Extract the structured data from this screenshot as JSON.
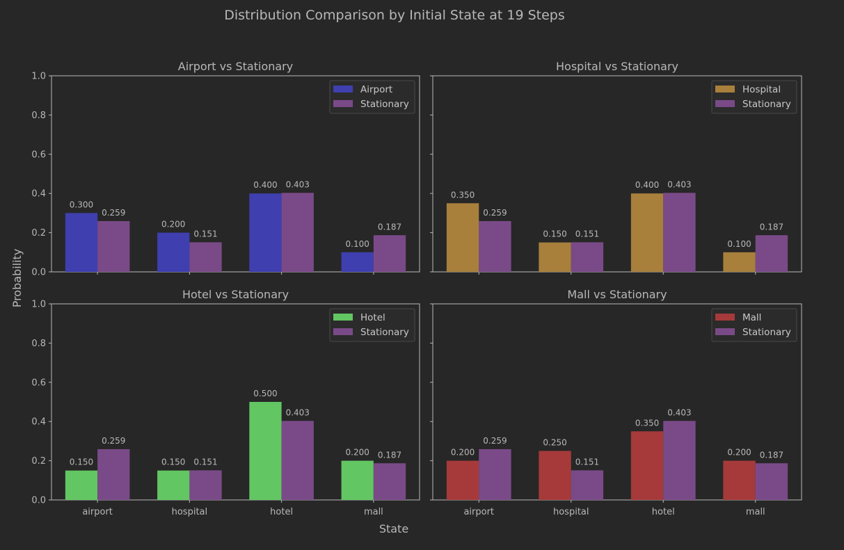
{
  "title": "Distribution Comparison by Initial State at 19 Steps",
  "xlabel": "State",
  "ylabel": "Probability",
  "colors": {
    "background": "#272727",
    "axis": "#b8b8b8",
    "stationary": "#7a4a88"
  },
  "chart_data": [
    {
      "type": "bar",
      "title": "Airport vs Stationary",
      "categories": [
        "airport",
        "hospital",
        "hotel",
        "mall"
      ],
      "ylim": [
        0,
        1.0
      ],
      "yticks": [
        "0.0",
        "0.2",
        "0.4",
        "0.6",
        "0.8",
        "1.0"
      ],
      "series": [
        {
          "name": "Airport",
          "color": "#3f3fb0",
          "values": [
            0.3,
            0.2,
            0.4,
            0.1
          ],
          "labels": [
            "0.300",
            "0.200",
            "0.400",
            "0.100"
          ]
        },
        {
          "name": "Stationary",
          "color": "#7a4a88",
          "values": [
            0.259,
            0.151,
            0.403,
            0.187
          ],
          "labels": [
            "0.259",
            "0.151",
            "0.403",
            "0.187"
          ]
        }
      ],
      "legend": "top-right"
    },
    {
      "type": "bar",
      "title": "Hospital vs Stationary",
      "categories": [
        "airport",
        "hospital",
        "hotel",
        "mall"
      ],
      "ylim": [
        0,
        1.0
      ],
      "yticks": [
        "0.0",
        "0.2",
        "0.4",
        "0.6",
        "0.8",
        "1.0"
      ],
      "series": [
        {
          "name": "Hospital",
          "color": "#a8803c",
          "values": [
            0.35,
            0.15,
            0.4,
            0.1
          ],
          "labels": [
            "0.350",
            "0.150",
            "0.400",
            "0.100"
          ]
        },
        {
          "name": "Stationary",
          "color": "#7a4a88",
          "values": [
            0.259,
            0.151,
            0.403,
            0.187
          ],
          "labels": [
            "0.259",
            "0.151",
            "0.403",
            "0.187"
          ]
        }
      ],
      "legend": "top-right"
    },
    {
      "type": "bar",
      "title": "Hotel vs Stationary",
      "categories": [
        "airport",
        "hospital",
        "hotel",
        "mall"
      ],
      "ylim": [
        0,
        1.0
      ],
      "yticks": [
        "0.0",
        "0.2",
        "0.4",
        "0.6",
        "0.8",
        "1.0"
      ],
      "series": [
        {
          "name": "Hotel",
          "color": "#62c662",
          "values": [
            0.15,
            0.15,
            0.5,
            0.2
          ],
          "labels": [
            "0.150",
            "0.150",
            "0.500",
            "0.200"
          ]
        },
        {
          "name": "Stationary",
          "color": "#7a4a88",
          "values": [
            0.259,
            0.151,
            0.403,
            0.187
          ],
          "labels": [
            "0.259",
            "0.151",
            "0.403",
            "0.187"
          ]
        }
      ],
      "legend": "top-right"
    },
    {
      "type": "bar",
      "title": "Mall vs Stationary",
      "categories": [
        "airport",
        "hospital",
        "hotel",
        "mall"
      ],
      "ylim": [
        0,
        1.0
      ],
      "yticks": [
        "0.0",
        "0.2",
        "0.4",
        "0.6",
        "0.8",
        "1.0"
      ],
      "series": [
        {
          "name": "Mall",
          "color": "#a63a3a",
          "values": [
            0.2,
            0.25,
            0.35,
            0.2
          ],
          "labels": [
            "0.200",
            "0.250",
            "0.350",
            "0.200"
          ]
        },
        {
          "name": "Stationary",
          "color": "#7a4a88",
          "values": [
            0.259,
            0.151,
            0.403,
            0.187
          ],
          "labels": [
            "0.259",
            "0.151",
            "0.403",
            "0.187"
          ]
        }
      ],
      "legend": "top-right"
    }
  ]
}
